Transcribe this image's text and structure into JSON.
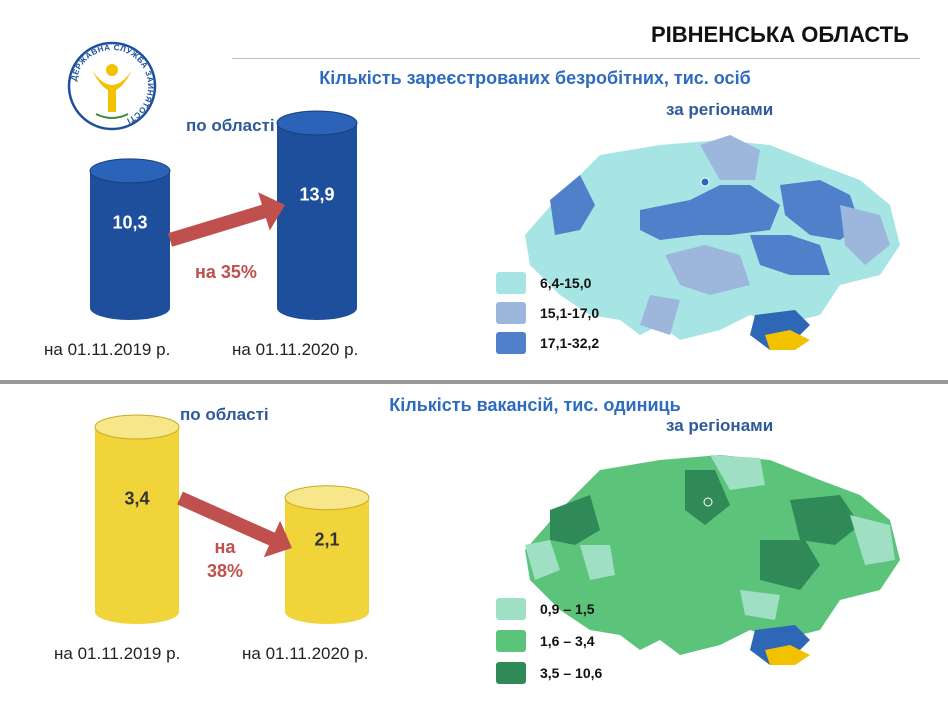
{
  "header": {
    "region": "РІВНЕНСЬКА ОБЛАСТЬ",
    "logo_text": "ДЕРЖАВНА СЛУЖБА ЗАЙНЯТОСТІ"
  },
  "colors": {
    "blue_cylinder": "#1d4f9c",
    "yellow_cylinder": "#f0d43a",
    "arrow": "#c0504d",
    "title_blue": "#2e6bbf",
    "unemp_legend": [
      "#a7e4e4",
      "#9db7dc",
      "#4f80c9"
    ],
    "vac_legend": [
      "#9fdfc4",
      "#5cc47a",
      "#2f8a58"
    ]
  },
  "unemployed": {
    "title": "Кількість зареєстрованих безробітних, тис. осіб",
    "by_region_label": "за регіонами",
    "by_oblast_label": "по області",
    "change_label": "на 35%",
    "legend": [
      "6,4-15,0",
      "15,1-17,0",
      "17,1-32,2"
    ]
  },
  "vacancies": {
    "title": "Кількість вакансій, тис. одиниць",
    "by_region_label": "за регіонами",
    "by_oblast_label": "по області",
    "change_label_1": "на",
    "change_label_2": "38%",
    "legend": [
      "0,9 – 1,5",
      "1,6 – 3,4",
      "3,5 – 10,6"
    ]
  },
  "chart_data": [
    {
      "type": "bar",
      "title": "Кількість зареєстрованих безробітних, тис. осіб",
      "categories": [
        "на 01.11.2019 р.",
        "на 01.11.2020 р."
      ],
      "values": [
        10.3,
        13.9
      ],
      "value_labels": [
        "10,3",
        "13,9"
      ],
      "annotation": "на 35%"
    },
    {
      "type": "bar",
      "title": "Кількість вакансій, тис. одиниць",
      "categories": [
        "на 01.11.2019 р.",
        "на 01.11.2020 р."
      ],
      "values": [
        3.4,
        2.1
      ],
      "value_labels": [
        "3,4",
        "2,1"
      ],
      "annotation": "на 38%"
    }
  ]
}
